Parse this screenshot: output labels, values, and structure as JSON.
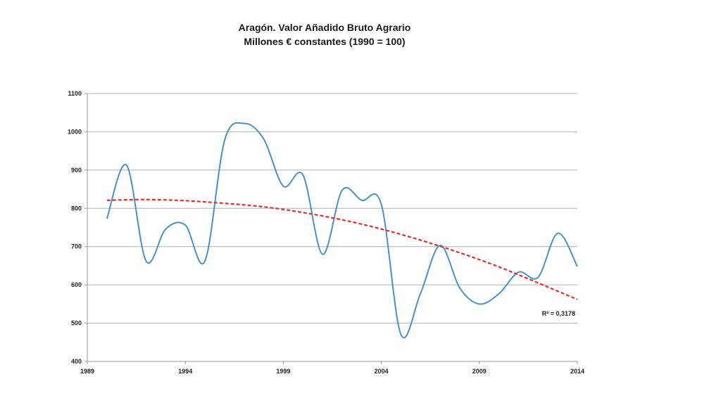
{
  "chart_data": {
    "type": "line",
    "title": "Aragón. Valor Añadido Bruto Agrario",
    "subtitle": "Millones € constantes (1990 = 100)",
    "xlabel": "",
    "ylabel": "",
    "xlim": [
      1989,
      2014
    ],
    "ylim": [
      400,
      1100
    ],
    "xticks": [
      1989,
      1994,
      1999,
      2004,
      2009,
      2014
    ],
    "yticks": [
      400,
      500,
      600,
      700,
      800,
      900,
      1000,
      1100
    ],
    "grid": true,
    "series": [
      {
        "color": "#4a90c8",
        "style": "smoothed",
        "x": [
          1990,
          1991,
          1992,
          1993,
          1994,
          1995,
          1996,
          1997,
          1998,
          1999,
          2000,
          2001,
          2002,
          2003,
          2004,
          2005,
          2006,
          2007,
          2008,
          2009,
          2010,
          2011,
          2012,
          2013,
          2014
        ],
        "y": [
          773,
          913,
          662,
          746,
          756,
          662,
          977,
          1022,
          981,
          858,
          887,
          680,
          847,
          821,
          810,
          470,
          578,
          703,
          592,
          550,
          577,
          633,
          620,
          735,
          648
        ]
      }
    ],
    "trendline": {
      "type": "polynomial",
      "color": "#e03030",
      "style": "dashed",
      "x": [
        1990,
        1992,
        1994,
        1996,
        1998,
        2000,
        2002,
        2004,
        2006,
        2008,
        2010,
        2012,
        2014
      ],
      "y": [
        821,
        823,
        820,
        813,
        804,
        789,
        770,
        746,
        717,
        684,
        647,
        605,
        562
      ]
    },
    "annotations": [
      {
        "text": "R² = 0,3178"
      }
    ]
  }
}
